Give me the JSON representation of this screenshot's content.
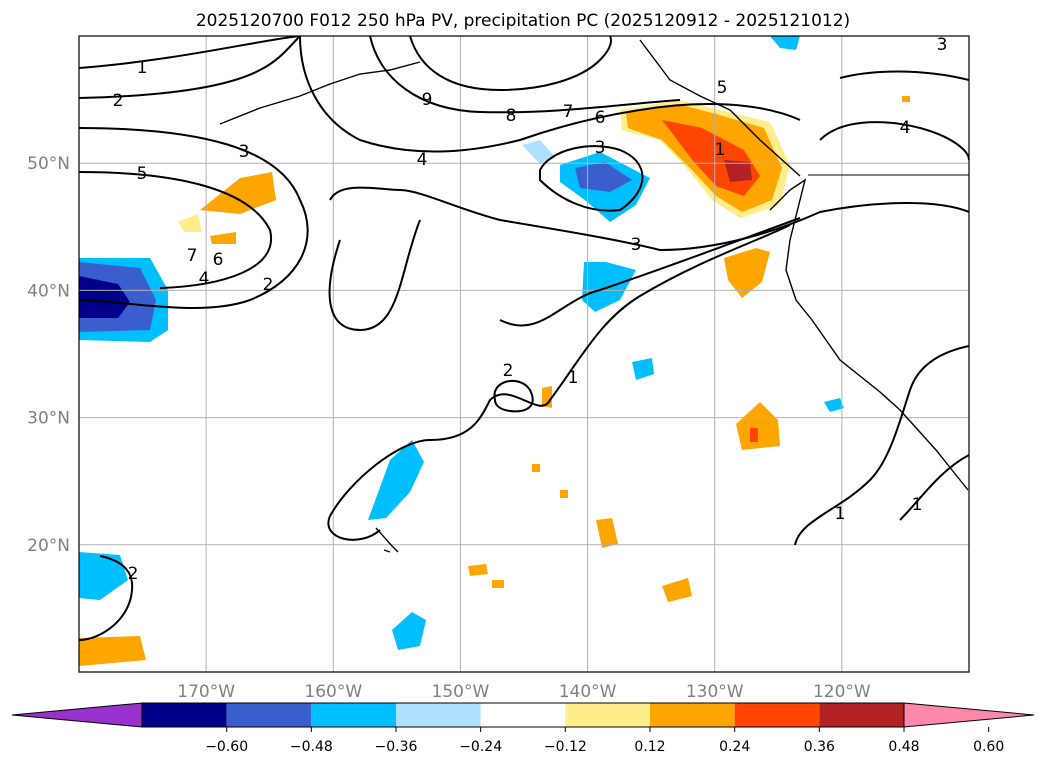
{
  "chart_data": {
    "type": "contour_map",
    "title": "2025120700 F012 250 hPa PV, precipitation PC (2025120912 - 2025121012)",
    "map": {
      "lon_range": [
        -180,
        -110
      ],
      "lat_range": [
        10,
        60
      ],
      "x_ticks": [
        "170°W",
        "160°W",
        "150°W",
        "140°W",
        "130°W",
        "120°W"
      ],
      "y_ticks": [
        "50°N",
        "40°N",
        "30°N",
        "20°N"
      ],
      "grid": true
    },
    "contour_labels": [
      "1",
      "2",
      "9",
      "8",
      "7",
      "6",
      "3",
      "5",
      "4",
      "3",
      "7",
      "6",
      "4",
      "2",
      "3",
      "5",
      "1",
      "3",
      "4",
      "2",
      "1",
      "1",
      "2",
      "1"
    ],
    "colorbar": {
      "ticks": [
        "−0.60",
        "−0.48",
        "−0.36",
        "−0.24",
        "−0.12",
        "0.12",
        "0.24",
        "0.36",
        "0.48",
        "0.60"
      ],
      "colors": [
        "#9932CC",
        "#00008B",
        "#3A5FCD",
        "#00BFFF",
        "#ADE1FF",
        "#FFFFFF",
        "#FFEC8B",
        "#FFA500",
        "#FF4500",
        "#B22222",
        "#FF88AA"
      ],
      "extend": "both"
    }
  }
}
